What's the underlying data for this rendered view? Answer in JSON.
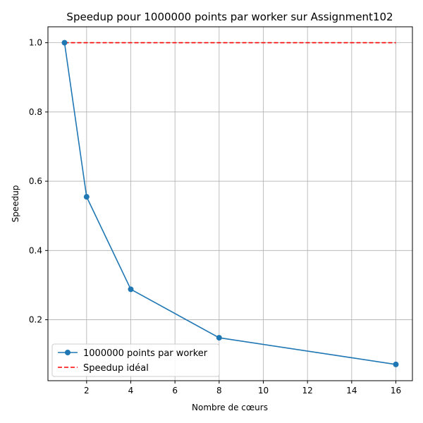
{
  "chart_data": {
    "type": "line",
    "title": "Speedup pour 1000000 points par worker sur Assignment102",
    "xlabel": "Nombre de cœurs",
    "ylabel": "Speedup",
    "xlim": [
      0.25,
      16.75
    ],
    "ylim": [
      0.024,
      1.046
    ],
    "xticks": [
      2,
      4,
      6,
      8,
      10,
      12,
      14,
      16
    ],
    "yticks": [
      0.2,
      0.4,
      0.6,
      0.8,
      1.0
    ],
    "ytick_labels": [
      "0.2",
      "0.4",
      "0.6",
      "0.8",
      "1.0"
    ],
    "grid": true,
    "legend_position": "lower-left",
    "series": [
      {
        "name": "1000000 points par worker",
        "style": "solid-line-circle-markers",
        "color": "#1f77b4",
        "x": [
          1,
          2,
          4,
          8,
          16
        ],
        "y": [
          1.0,
          0.555,
          0.288,
          0.148,
          0.071
        ]
      },
      {
        "name": "Speedup idéal",
        "style": "dashed-line",
        "color": "#ff0000",
        "x": [
          1,
          16
        ],
        "y": [
          1.0,
          1.0
        ]
      }
    ]
  }
}
